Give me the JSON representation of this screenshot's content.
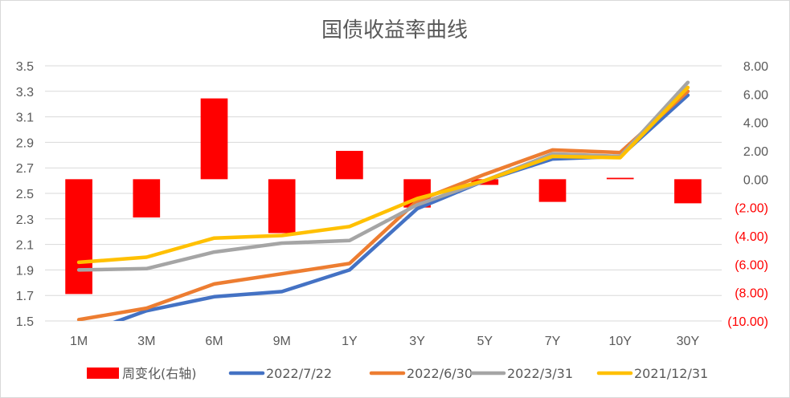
{
  "chart_data": {
    "type": "bar+line",
    "title": "国债收益率曲线",
    "categories": [
      "1M",
      "3M",
      "6M",
      "9M",
      "1Y",
      "3Y",
      "5Y",
      "7Y",
      "10Y",
      "30Y"
    ],
    "left_axis": {
      "ylim": [
        1.5,
        3.5
      ],
      "ticks": [
        "1.5",
        "1.7",
        "1.9",
        "2.1",
        "2.3",
        "2.5",
        "2.7",
        "2.9",
        "3.1",
        "3.3",
        "3.5"
      ]
    },
    "right_axis": {
      "ylim": [
        -10,
        8
      ],
      "ticks": [
        "(10.00)",
        "(8.00)",
        "(6.00)",
        "(4.00)",
        "(2.00)",
        "0.00",
        "2.00",
        "4.00",
        "6.00",
        "8.00"
      ],
      "tick_values": [
        -10,
        -8,
        -6,
        -4,
        -2,
        0,
        2,
        4,
        6,
        8
      ]
    },
    "bar_series": {
      "name": "周变化(右轴)",
      "axis": "right",
      "color": "#ff0000",
      "values": [
        -8.1,
        -2.7,
        5.7,
        -3.8,
        2.0,
        -2.0,
        -0.4,
        -1.6,
        0.1,
        -1.7
      ]
    },
    "series": [
      {
        "name": "2022/7/22",
        "color": "#4472c4",
        "values": [
          1.39,
          1.58,
          1.69,
          1.73,
          1.9,
          2.38,
          2.6,
          2.77,
          2.79,
          3.27
        ]
      },
      {
        "name": "2022/6/30",
        "color": "#ed7d31",
        "values": [
          1.51,
          1.6,
          1.79,
          1.87,
          1.95,
          2.44,
          2.65,
          2.84,
          2.82,
          3.3
        ]
      },
      {
        "name": "2022/3/31",
        "color": "#a5a5a5",
        "values": [
          1.9,
          1.91,
          2.04,
          2.11,
          2.13,
          2.41,
          2.6,
          2.81,
          2.79,
          3.37
        ]
      },
      {
        "name": "2021/12/31",
        "color": "#ffc000",
        "values": [
          1.96,
          2.0,
          2.15,
          2.17,
          2.24,
          2.46,
          2.6,
          2.79,
          2.78,
          3.33
        ]
      }
    ],
    "grid": true,
    "legend": "bottom"
  }
}
